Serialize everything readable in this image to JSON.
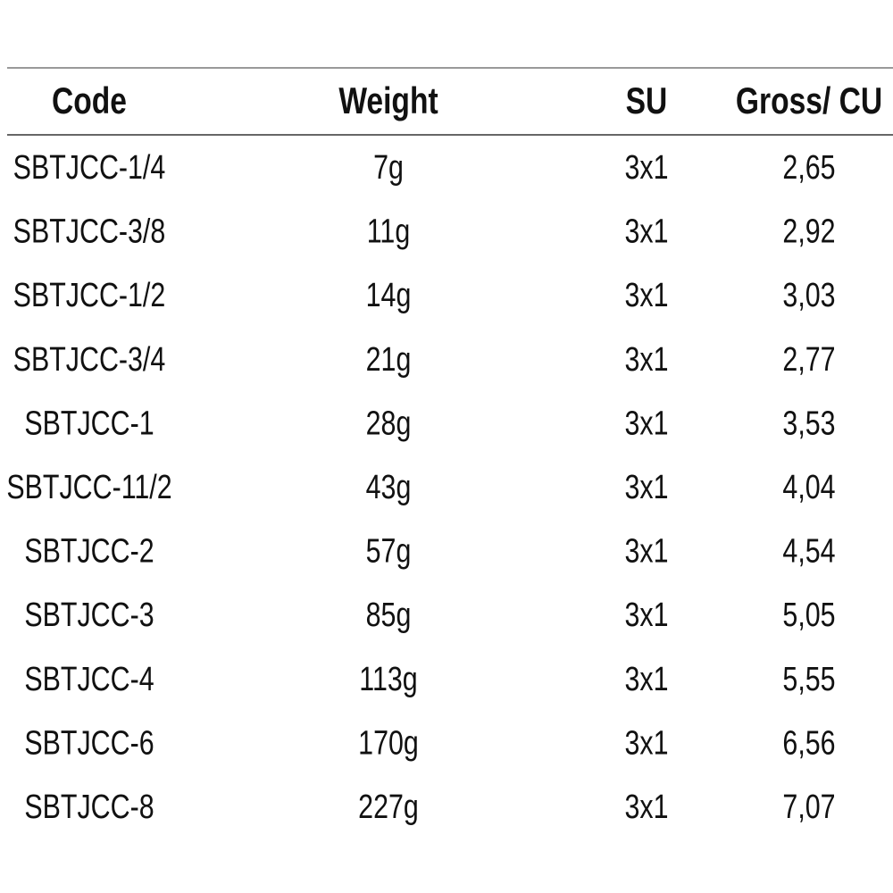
{
  "table": {
    "headers": [
      "Code",
      "Weight",
      "SU",
      "Gross/ CU"
    ],
    "rows": [
      [
        "SBTJCC-1/4",
        "7g",
        "3x1",
        "2,65"
      ],
      [
        "SBTJCC-3/8",
        "11g",
        "3x1",
        "2,92"
      ],
      [
        "SBTJCC-1/2",
        "14g",
        "3x1",
        "3,03"
      ],
      [
        "SBTJCC-3/4",
        "21g",
        "3x1",
        "2,77"
      ],
      [
        "SBTJCC-1",
        "28g",
        "3x1",
        "3,53"
      ],
      [
        "SBTJCC-11/2",
        "43g",
        "3x1",
        "4,04"
      ],
      [
        "SBTJCC-2",
        "57g",
        "3x1",
        "4,54"
      ],
      [
        "SBTJCC-3",
        "85g",
        "3x1",
        "5,05"
      ],
      [
        "SBTJCC-4",
        "113g",
        "3x1",
        "5,55"
      ],
      [
        "SBTJCC-6",
        "170g",
        "3x1",
        "6,56"
      ],
      [
        "SBTJCC-8",
        "227g",
        "3x1",
        "7,07"
      ]
    ]
  }
}
